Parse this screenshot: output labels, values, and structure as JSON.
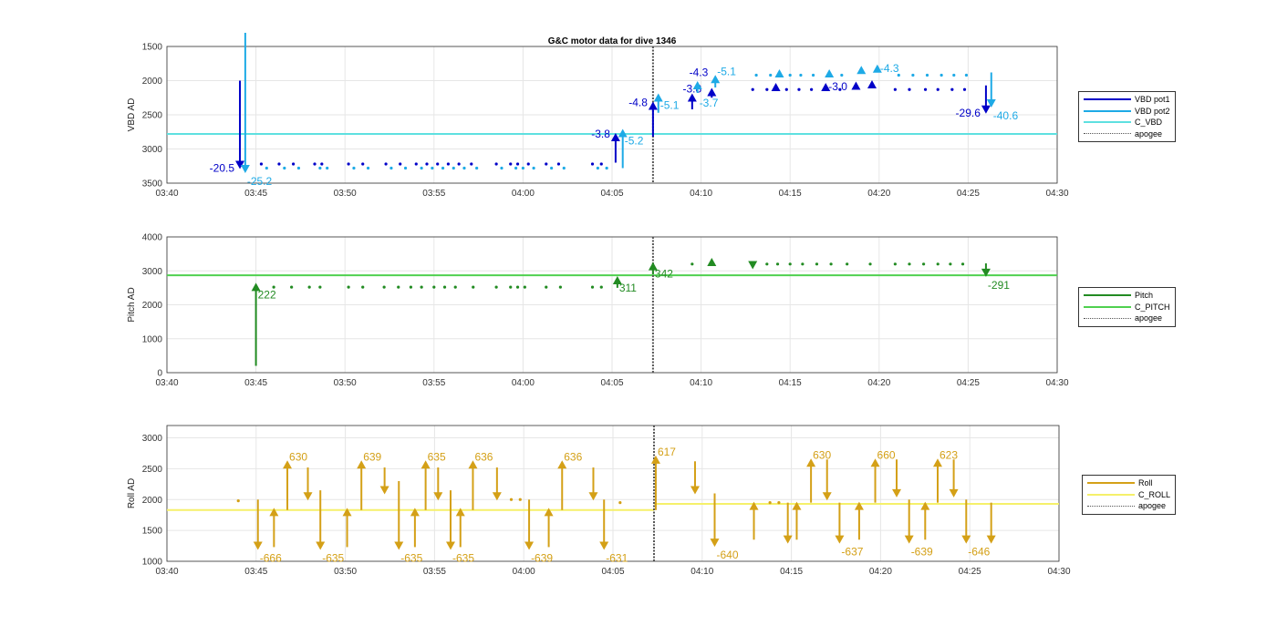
{
  "title": "G&C motor data for dive 1346",
  "colors": {
    "pot1": "#0000c8",
    "pot2": "#1eaae6",
    "c_vbd": "#5ee0e0",
    "pitch": "#228b22",
    "c_pitch": "#4fd04f",
    "roll": "#d4a017",
    "c_roll": "#f5f06a",
    "apogee": "#555555"
  },
  "chart_data": [
    {
      "type": "line",
      "ylabel": "VBD AD",
      "ylim": [
        1500,
        3500
      ],
      "y_reversed": true,
      "yticks": [
        "1500",
        "2000",
        "2500",
        "3000",
        "3500"
      ],
      "ytick_values": [
        1500,
        2000,
        2500,
        3000,
        3500
      ],
      "xticks": [
        "03:40",
        "03:45",
        "03:50",
        "03:55",
        "04:00",
        "04:05",
        "04:10",
        "04:15",
        "04:20",
        "04:25",
        "04:30"
      ],
      "xlim_minutes_after_0340": [
        0,
        50
      ],
      "grid": true,
      "legend": [
        "VBD pot1",
        "VBD pot2",
        "C_VBD",
        "apogee"
      ],
      "legend_placement": "outside-right",
      "apogee_t": 27.3,
      "hlines": [
        {
          "series": "C_VBD",
          "color": "c_vbd",
          "t0": 0,
          "t1": 50,
          "y": 2780
        }
      ],
      "dots": [
        {
          "color": "pot1",
          "y": 3220,
          "t": [
            5.3,
            6.3,
            7.1,
            8.3,
            8.7,
            10.2,
            11.0,
            12.3,
            13.1,
            14.0,
            14.6,
            15.2,
            15.8,
            16.4,
            17.1,
            18.5,
            19.3,
            19.7,
            20.3,
            21.3,
            22.0,
            23.9,
            24.4
          ]
        },
        {
          "color": "pot2",
          "y": 3280,
          "t": [
            5.6,
            6.6,
            7.4,
            8.6,
            9.0,
            10.5,
            11.3,
            12.6,
            13.4,
            14.3,
            14.9,
            15.5,
            16.1,
            16.7,
            17.4,
            18.8,
            19.6,
            20.0,
            20.6,
            21.6,
            22.3,
            24.2,
            24.7
          ]
        },
        {
          "color": "pot1",
          "y": 2130,
          "t": [
            32.9,
            33.7,
            34.8,
            35.5,
            36.2,
            37.8,
            40.9,
            41.7,
            42.6,
            43.3,
            44.1,
            44.8
          ]
        },
        {
          "color": "pot2",
          "y": 1920,
          "t": [
            33.1,
            33.9,
            35.0,
            35.6,
            36.3,
            37.9,
            41.1,
            41.9,
            42.7,
            43.5,
            44.2,
            44.9
          ]
        }
      ],
      "triangles": [
        {
          "color": "pot1",
          "t": 34.2,
          "y": 2100,
          "dir": "up"
        },
        {
          "color": "pot1",
          "t": 37.0,
          "y": 2100,
          "dir": "up",
          "label": "-3.0"
        },
        {
          "color": "pot1",
          "t": 38.7,
          "y": 2080,
          "dir": "up"
        },
        {
          "color": "pot1",
          "t": 39.6,
          "y": 2060,
          "dir": "up"
        },
        {
          "color": "pot2",
          "t": 34.4,
          "y": 1900,
          "dir": "up"
        },
        {
          "color": "pot2",
          "t": 37.2,
          "y": 1900,
          "dir": "up"
        },
        {
          "color": "pot2",
          "t": 39.0,
          "y": 1850,
          "dir": "up"
        },
        {
          "color": "pot2",
          "t": 39.9,
          "y": 1830,
          "dir": "up",
          "label": "-4.3"
        }
      ],
      "arrows": [
        {
          "color": "pot1",
          "t": 4.1,
          "from": 2000,
          "to": 3280,
          "label": "-20.5",
          "lside": "left"
        },
        {
          "color": "pot2",
          "t": 4.4,
          "from": 1300,
          "to": 3340,
          "label": "-25.2",
          "lside": "right-below"
        },
        {
          "color": "pot1",
          "t": 25.2,
          "from": 3200,
          "to": 2780,
          "label": "-3.8",
          "lside": "left"
        },
        {
          "color": "pot2",
          "t": 25.6,
          "from": 3280,
          "to": 2720,
          "label": "-5.2",
          "lside": "right-below"
        },
        {
          "color": "pot1",
          "t": 27.3,
          "from": 2820,
          "to": 2320,
          "label": "-4.8",
          "lside": "left"
        },
        {
          "color": "pot2",
          "t": 27.6,
          "from": 2470,
          "to": 2200,
          "label": "-5.1",
          "lside": "right-below"
        },
        {
          "color": "pot1",
          "t": 29.5,
          "from": 2420,
          "to": 2200,
          "label": "-3.8",
          "lside": "above"
        },
        {
          "color": "pot2",
          "t": 29.8,
          "from": 2180,
          "to": 2020,
          "label": "-3.7",
          "lside": "right-below"
        },
        {
          "color": "pot1",
          "t": 30.6,
          "from": 2250,
          "to": 2120,
          "label": "-4.3",
          "lside": "left-small"
        },
        {
          "color": "pot2",
          "t": 30.8,
          "from": 2100,
          "to": 1930,
          "label": "-5.1",
          "lside": "right"
        },
        {
          "color": "pot1",
          "t": 46.0,
          "from": 2070,
          "to": 2470,
          "label": "-29.6",
          "lside": "left"
        },
        {
          "color": "pot2",
          "t": 46.3,
          "from": 1880,
          "to": 2380,
          "label": "-40.6",
          "lside": "right-below"
        }
      ]
    },
    {
      "type": "line",
      "ylabel": "Pitch AD",
      "ylim": [
        0,
        4000
      ],
      "y_reversed": false,
      "yticks": [
        "0",
        "1000",
        "2000",
        "3000",
        "4000"
      ],
      "ytick_values": [
        0,
        1000,
        2000,
        3000,
        4000
      ],
      "xticks": [
        "03:40",
        "03:45",
        "03:50",
        "03:55",
        "04:00",
        "04:05",
        "04:10",
        "04:15",
        "04:20",
        "04:25",
        "04:30"
      ],
      "xlim_minutes_after_0340": [
        0,
        50
      ],
      "grid": true,
      "legend": [
        "Pitch",
        "C_PITCH",
        "apogee"
      ],
      "legend_placement": "outside-right",
      "apogee_t": 27.3,
      "hlines": [
        {
          "series": "C_PITCH",
          "color": "c_pitch",
          "t0": 0,
          "t1": 50,
          "y": 2870
        }
      ],
      "dots": [
        {
          "color": "pitch",
          "y": 2520,
          "t": [
            6.0,
            7.0,
            8.0,
            8.6,
            10.2,
            11.0,
            12.2,
            13.0,
            13.7,
            14.3,
            15.0,
            15.6,
            16.2,
            17.2,
            18.5,
            19.3,
            19.7,
            20.1,
            21.3,
            22.1,
            23.9,
            24.4
          ]
        },
        {
          "color": "pitch",
          "y": 3200,
          "t": [
            29.5,
            33.7,
            34.3,
            35.0,
            35.7,
            36.5,
            37.3,
            38.2,
            39.5,
            40.9,
            41.7,
            42.5,
            43.3,
            44.0,
            44.7
          ]
        }
      ],
      "triangles": [
        {
          "color": "pitch",
          "t": 30.6,
          "y": 3250,
          "dir": "up"
        },
        {
          "color": "pitch",
          "t": 32.9,
          "y": 3180,
          "dir": "down"
        }
      ],
      "arrows": [
        {
          "color": "pitch",
          "t": 5.0,
          "from": 200,
          "to": 2620,
          "label": "222",
          "lside": "right-below"
        },
        {
          "color": "pitch",
          "t": 25.3,
          "from": 2500,
          "to": 2820,
          "label": "311",
          "lside": "right-below"
        },
        {
          "color": "pitch",
          "t": 27.3,
          "from": 2900,
          "to": 3230,
          "label": "342",
          "lside": "right-below"
        },
        {
          "color": "pitch",
          "t": 46.0,
          "from": 3220,
          "to": 2850,
          "label": "-291",
          "lside": "right-below"
        }
      ]
    },
    {
      "type": "line",
      "ylabel": "Roll AD",
      "ylim": [
        1000,
        3200
      ],
      "y_reversed": false,
      "yticks": [
        "1000",
        "1500",
        "2000",
        "2500",
        "3000"
      ],
      "ytick_values": [
        1000,
        1500,
        2000,
        2500,
        3000
      ],
      "xticks": [
        "03:40",
        "03:45",
        "03:50",
        "03:55",
        "04:00",
        "04:05",
        "04:10",
        "04:15",
        "04:20",
        "04:25",
        "04:30"
      ],
      "xlim_minutes_after_0340": [
        0,
        50
      ],
      "grid": true,
      "legend": [
        "Roll",
        "C_ROLL",
        "apogee"
      ],
      "legend_placement": "outside-right",
      "apogee_t": 27.3,
      "hlines": [
        {
          "series": "C_ROLL",
          "color": "c_roll",
          "t0": 0,
          "t1": 27.3,
          "y": 1830
        },
        {
          "series": "C_ROLL",
          "color": "c_roll",
          "t0": 27.3,
          "t1": 50,
          "y": 1930
        }
      ],
      "dots": [
        {
          "color": "roll",
          "y": 1980,
          "t": [
            4.0
          ]
        },
        {
          "color": "roll",
          "y": 2000,
          "t": [
            19.3,
            19.8
          ]
        },
        {
          "color": "roll",
          "y": 1950,
          "t": [
            25.4,
            33.8,
            34.3
          ]
        }
      ],
      "triangles": [],
      "arrows": [
        {
          "color": "roll",
          "t": 5.1,
          "from": 2000,
          "to": 1200,
          "label": "-666",
          "lside": "right-below"
        },
        {
          "color": "roll",
          "t": 6.0,
          "from": 1230,
          "to": 1850
        },
        {
          "color": "roll",
          "t": 6.75,
          "from": 1830,
          "to": 2620,
          "label": "630",
          "lside": "right"
        },
        {
          "color": "roll",
          "t": 7.9,
          "from": 2520,
          "to": 2000
        },
        {
          "color": "roll",
          "t": 8.6,
          "from": 2150,
          "to": 1200,
          "label": "-635",
          "lside": "right-below"
        },
        {
          "color": "roll",
          "t": 10.1,
          "from": 1230,
          "to": 1850
        },
        {
          "color": "roll",
          "t": 10.9,
          "from": 1830,
          "to": 2620,
          "label": "639",
          "lside": "right"
        },
        {
          "color": "roll",
          "t": 12.2,
          "from": 2520,
          "to": 2100
        },
        {
          "color": "roll",
          "t": 13.0,
          "from": 2300,
          "to": 1200,
          "label": "-635",
          "lside": "right-below"
        },
        {
          "color": "roll",
          "t": 13.9,
          "from": 1230,
          "to": 1850
        },
        {
          "color": "roll",
          "t": 14.5,
          "from": 1830,
          "to": 2620,
          "label": "635",
          "lside": "right"
        },
        {
          "color": "roll",
          "t": 15.2,
          "from": 2520,
          "to": 2000
        },
        {
          "color": "roll",
          "t": 15.9,
          "from": 2150,
          "to": 1200,
          "label": "-635",
          "lside": "right-below"
        },
        {
          "color": "roll",
          "t": 16.45,
          "from": 1230,
          "to": 1850
        },
        {
          "color": "roll",
          "t": 17.15,
          "from": 1830,
          "to": 2620,
          "label": "636",
          "lside": "right"
        },
        {
          "color": "roll",
          "t": 18.5,
          "from": 2520,
          "to": 2000
        },
        {
          "color": "roll",
          "t": 20.3,
          "from": 2000,
          "to": 1200,
          "label": "-639",
          "lside": "right-below"
        },
        {
          "color": "roll",
          "t": 21.4,
          "from": 1230,
          "to": 1850
        },
        {
          "color": "roll",
          "t": 22.15,
          "from": 1830,
          "to": 2620,
          "label": "636",
          "lside": "right"
        },
        {
          "color": "roll",
          "t": 23.9,
          "from": 2520,
          "to": 2000
        },
        {
          "color": "roll",
          "t": 24.5,
          "from": 2000,
          "to": 1200,
          "label": "-631",
          "lside": "right-below"
        },
        {
          "color": "roll",
          "t": 27.4,
          "from": 1830,
          "to": 2700,
          "label": "617",
          "lside": "right"
        },
        {
          "color": "roll",
          "t": 29.6,
          "from": 2620,
          "to": 2100
        },
        {
          "color": "roll",
          "t": 30.7,
          "from": 2100,
          "to": 1250,
          "label": "-640",
          "lside": "right-below"
        },
        {
          "color": "roll",
          "t": 32.9,
          "from": 1350,
          "to": 1950
        },
        {
          "color": "roll",
          "t": 34.8,
          "from": 1950,
          "to": 1300
        },
        {
          "color": "roll",
          "t": 35.3,
          "from": 1350,
          "to": 1950
        },
        {
          "color": "roll",
          "t": 36.1,
          "from": 1950,
          "to": 2650,
          "label": "630",
          "lside": "right"
        },
        {
          "color": "roll",
          "t": 37.0,
          "from": 2650,
          "to": 2000
        },
        {
          "color": "roll",
          "t": 37.7,
          "from": 1950,
          "to": 1300,
          "label": "-637",
          "lside": "right-below"
        },
        {
          "color": "roll",
          "t": 38.8,
          "from": 1350,
          "to": 1950
        },
        {
          "color": "roll",
          "t": 39.7,
          "from": 1950,
          "to": 2650,
          "label": "660",
          "lside": "right"
        },
        {
          "color": "roll",
          "t": 40.9,
          "from": 2650,
          "to": 2050
        },
        {
          "color": "roll",
          "t": 41.6,
          "from": 2000,
          "to": 1300,
          "label": "-639",
          "lside": "right-below"
        },
        {
          "color": "roll",
          "t": 42.5,
          "from": 1350,
          "to": 1950
        },
        {
          "color": "roll",
          "t": 43.2,
          "from": 1950,
          "to": 2650,
          "label": "623",
          "lside": "right"
        },
        {
          "color": "roll",
          "t": 44.1,
          "from": 2650,
          "to": 2050
        },
        {
          "color": "roll",
          "t": 44.8,
          "from": 2000,
          "to": 1300,
          "label": "-646",
          "lside": "right-below"
        },
        {
          "color": "roll",
          "t": 46.2,
          "from": 1950,
          "to": 1300
        }
      ]
    }
  ]
}
